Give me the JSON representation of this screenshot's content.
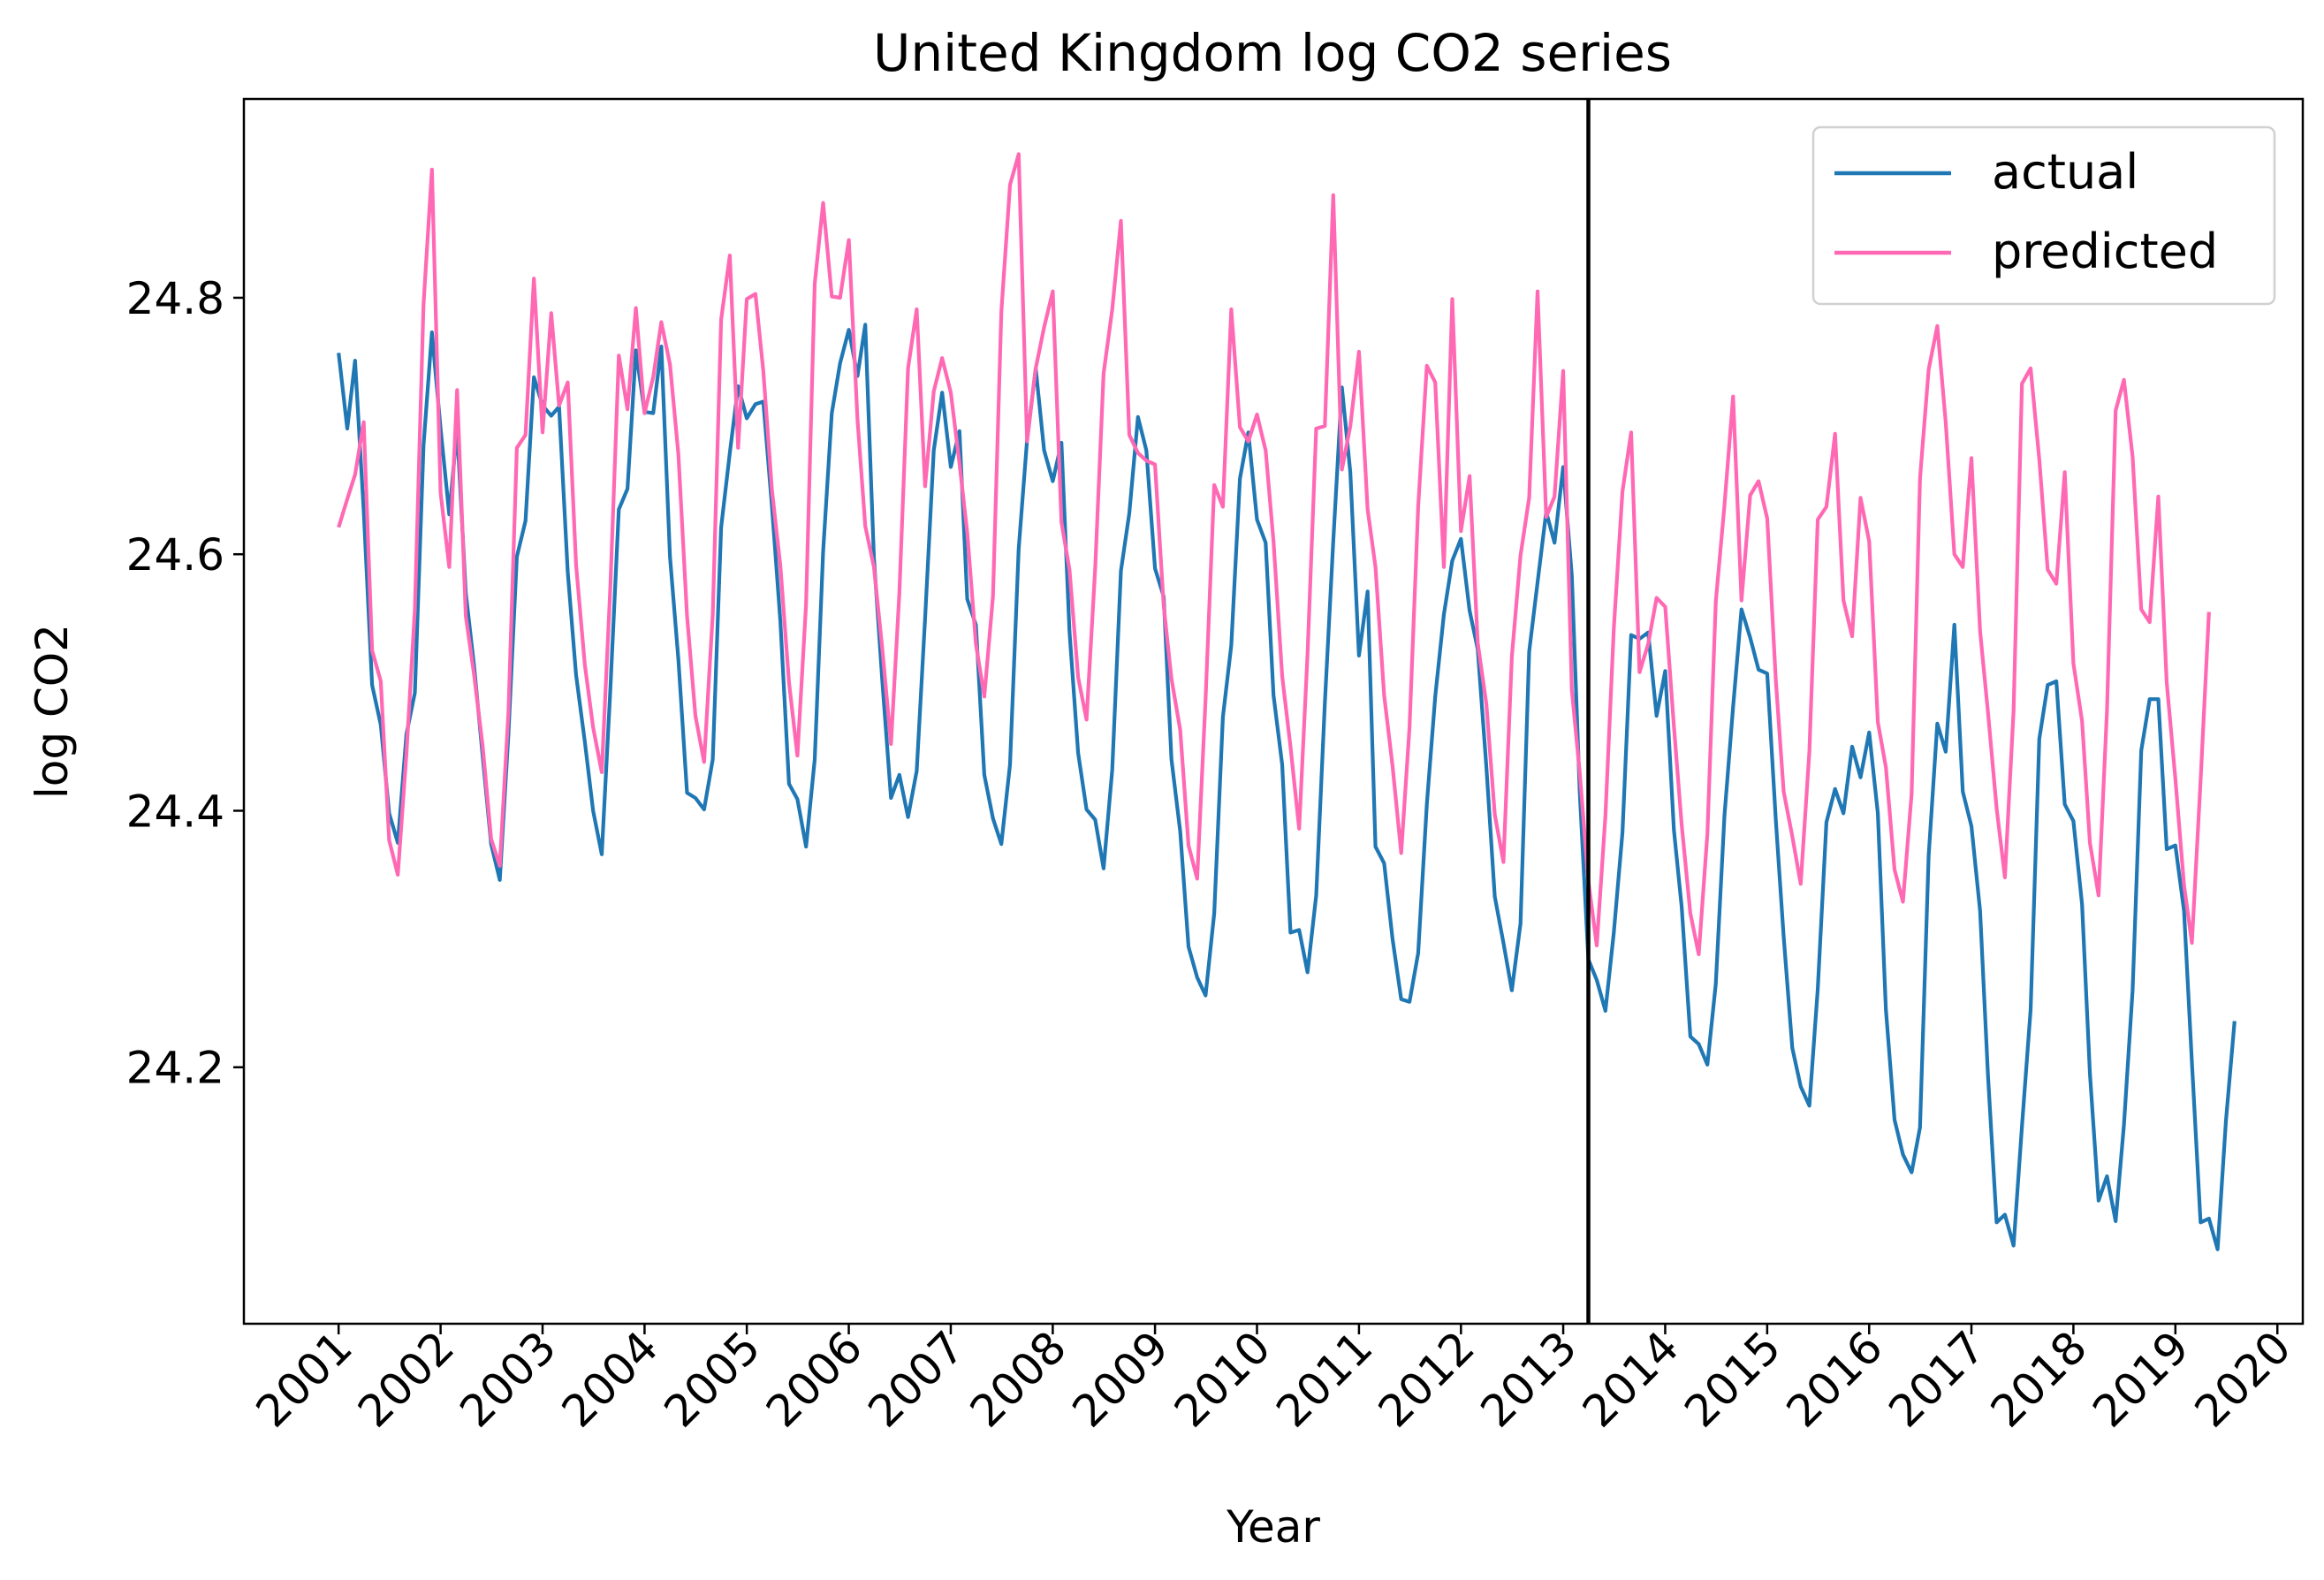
{
  "chart_data": {
    "type": "line",
    "title": "United Kingdom log CO2 series",
    "xlabel": "Year",
    "ylabel": "log CO2",
    "x_ticks": [
      "2001",
      "2002",
      "2003",
      "2004",
      "2005",
      "2006",
      "2007",
      "2008",
      "2009",
      "2010",
      "2011",
      "2012",
      "2013",
      "2014",
      "2015",
      "2016",
      "2017",
      "2018",
      "2019",
      "2020"
    ],
    "y_ticks": [
      "24.2",
      "24.4",
      "24.6",
      "24.8"
    ],
    "ylim": [
      24.0,
      24.955
    ],
    "xlim": [
      "2000-01-28",
      "2020-04-01"
    ],
    "x_start": "2001-01",
    "x_step": "monthly",
    "split_date": "2013-04",
    "grid": false,
    "legend_position": "top-right",
    "colors": {
      "actual": "#1f77b4",
      "predicted": "#ff69b4",
      "split_line": "#000000"
    },
    "series": [
      {
        "name": "actual",
        "values": [
          24.757,
          24.698,
          24.751,
          24.634,
          24.498,
          24.467,
          24.398,
          24.375,
          24.46,
          24.492,
          24.685,
          24.773,
          24.698,
          24.631,
          24.698,
          24.57,
          24.513,
          24.442,
          24.374,
          24.346,
          24.46,
          24.598,
          24.626,
          24.738,
          24.716,
          24.708,
          24.715,
          24.586,
          24.506,
          24.454,
          24.4,
          24.366,
          24.496,
          24.635,
          24.651,
          24.759,
          24.711,
          24.71,
          24.762,
          24.598,
          24.518,
          24.414,
          24.41,
          24.401,
          24.44,
          24.621,
          24.679,
          24.731,
          24.706,
          24.717,
          24.719,
          24.637,
          24.548,
          24.421,
          24.409,
          24.372,
          24.44,
          24.602,
          24.71,
          24.749,
          24.775,
          24.739,
          24.779,
          24.597,
          24.501,
          24.41,
          24.428,
          24.395,
          24.431,
          24.55,
          24.681,
          24.726,
          24.668,
          24.696,
          24.565,
          24.545,
          24.428,
          24.394,
          24.374,
          24.436,
          24.604,
          24.689,
          24.745,
          24.681,
          24.657,
          24.687,
          24.54,
          24.445,
          24.401,
          24.393,
          24.355,
          24.432,
          24.587,
          24.632,
          24.707,
          24.681,
          24.589,
          24.567,
          24.44,
          24.384,
          24.294,
          24.27,
          24.256,
          24.32,
          24.473,
          24.529,
          24.659,
          24.695,
          24.627,
          24.609,
          24.49,
          24.436,
          24.305,
          24.307,
          24.274,
          24.334,
          24.484,
          24.61,
          24.73,
          24.664,
          24.521,
          24.571,
          24.372,
          24.359,
          24.3,
          24.253,
          24.251,
          24.289,
          24.405,
          24.489,
          24.553,
          24.595,
          24.612,
          24.556,
          24.526,
          24.434,
          24.333,
          24.297,
          24.26,
          24.312,
          24.524,
          24.578,
          24.633,
          24.609,
          24.668,
          24.583,
          24.415,
          24.284,
          24.268,
          24.244,
          24.305,
          24.383,
          24.537,
          24.534,
          24.539,
          24.474,
          24.509,
          24.385,
          24.325,
          24.224,
          24.218,
          24.202,
          24.265,
          24.396,
          24.481,
          24.557,
          24.535,
          24.51,
          24.507,
          24.392,
          24.302,
          24.215,
          24.185,
          24.17,
          24.261,
          24.391,
          24.417,
          24.398,
          24.45,
          24.426,
          24.461,
          24.398,
          24.245,
          24.159,
          24.132,
          24.118,
          24.153,
          24.365,
          24.468,
          24.446,
          24.545,
          24.415,
          24.388,
          24.322,
          24.194,
          24.079,
          24.085,
          24.061,
          24.154,
          24.245,
          24.456,
          24.498,
          24.501,
          24.405,
          24.392,
          24.327,
          24.195,
          24.096,
          24.115,
          24.08,
          24.155,
          24.26,
          24.447,
          24.487,
          24.487,
          24.37,
          24.373,
          24.322,
          24.204,
          24.079,
          24.082,
          24.058,
          24.158,
          24.236
        ]
      },
      {
        "name": "predicted",
        "values": [
          24.621,
          24.643,
          24.662,
          24.703,
          24.525,
          24.501,
          24.377,
          24.35,
          24.445,
          24.557,
          24.795,
          24.9,
          24.648,
          24.59,
          24.728,
          24.552,
          24.506,
          24.45,
          24.378,
          24.357,
          24.477,
          24.683,
          24.693,
          24.815,
          24.695,
          24.788,
          24.716,
          24.734,
          24.592,
          24.514,
          24.465,
          24.43,
          24.576,
          24.755,
          24.713,
          24.792,
          24.71,
          24.738,
          24.781,
          24.748,
          24.678,
          24.552,
          24.474,
          24.438,
          24.553,
          24.783,
          24.833,
          24.683,
          24.799,
          24.803,
          24.743,
          24.65,
          24.591,
          24.5,
          24.443,
          24.561,
          24.811,
          24.874,
          24.801,
          24.8,
          24.845,
          24.705,
          24.622,
          24.59,
          24.526,
          24.452,
          24.57,
          24.745,
          24.791,
          24.653,
          24.727,
          24.753,
          24.726,
          24.671,
          24.617,
          24.53,
          24.489,
          24.567,
          24.789,
          24.888,
          24.912,
          24.688,
          24.745,
          24.777,
          24.805,
          24.625,
          24.588,
          24.504,
          24.471,
          24.589,
          24.741,
          24.791,
          24.86,
          24.693,
          24.679,
          24.673,
          24.67,
          24.56,
          24.503,
          24.463,
          24.373,
          24.347,
          24.487,
          24.654,
          24.637,
          24.791,
          24.699,
          24.688,
          24.709,
          24.681,
          24.61,
          24.505,
          24.45,
          24.386,
          24.522,
          24.698,
          24.7,
          24.88,
          24.666,
          24.7,
          24.758,
          24.635,
          24.59,
          24.49,
          24.435,
          24.367,
          24.465,
          24.637,
          24.747,
          24.734,
          24.59,
          24.799,
          24.618,
          24.661,
          24.531,
          24.483,
          24.397,
          24.36,
          24.52,
          24.599,
          24.644,
          24.805,
          24.629,
          24.645,
          24.743,
          24.494,
          24.43,
          24.345,
          24.295,
          24.396,
          24.542,
          24.649,
          24.695,
          24.508,
          24.53,
          24.566,
          24.559,
          24.466,
          24.389,
          24.32,
          24.288,
          24.382,
          24.563,
          24.638,
          24.723,
          24.564,
          24.646,
          24.657,
          24.628,
          24.501,
          24.415,
          24.38,
          24.343,
          24.446,
          24.627,
          24.637,
          24.694,
          24.564,
          24.536,
          24.644,
          24.61,
          24.469,
          24.434,
          24.354,
          24.329,
          24.413,
          24.659,
          24.744,
          24.778,
          24.703,
          24.6,
          24.59,
          24.675,
          24.54,
          24.477,
          24.402,
          24.348,
          24.478,
          24.733,
          24.745,
          24.674,
          24.588,
          24.577,
          24.664,
          24.515,
          24.47,
          24.375,
          24.334,
          24.478,
          24.712,
          24.736,
          24.676,
          24.557,
          24.547,
          24.645,
          24.5,
          24.425,
          24.342,
          24.297,
          24.423,
          24.555
        ]
      }
    ]
  }
}
